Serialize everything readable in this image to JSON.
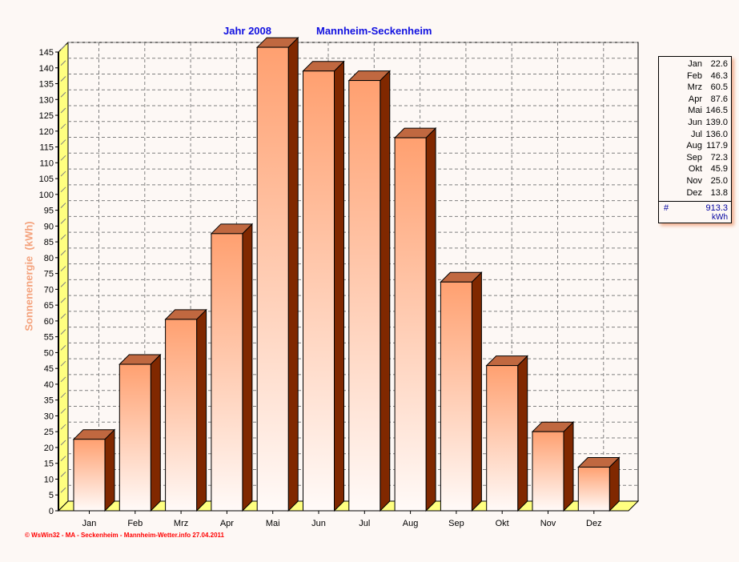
{
  "chart_data": {
    "type": "bar",
    "title_year": "Jahr  2008",
    "title_location": "Mannheim-Seckenheim",
    "ylabel": "Sonnenenergie  (kWh)",
    "xlabel": "",
    "categories": [
      "Jan",
      "Feb",
      "Mrz",
      "Apr",
      "Mai",
      "Jun",
      "Jul",
      "Aug",
      "Sep",
      "Okt",
      "Nov",
      "Dez"
    ],
    "values": [
      22.6,
      46.3,
      60.5,
      87.6,
      146.5,
      139.0,
      136.0,
      117.9,
      72.3,
      45.9,
      25.0,
      13.8
    ],
    "value_labels": [
      "22.6",
      "46.3",
      "60.5",
      "87.6",
      "146.5",
      "139.0",
      "136.0",
      "117.9",
      "72.3",
      "45.9",
      "25.0",
      "13.8"
    ],
    "ylim": [
      0,
      145
    ],
    "ytick_step": 5,
    "grid": true,
    "legend_placement": "right",
    "total_symbol": "#",
    "total": "913.3",
    "unit": "kWh",
    "colors": {
      "bar_top": "#ffa070",
      "bar_bottom": "#fffaf8",
      "bar_side": "#802800",
      "bar_cap": "#c06840",
      "wall": "#ffff80",
      "title": "#1010e0",
      "ylabel": "#f4a27c"
    }
  },
  "footer": "© WsWin32  -  MA - Seckenheim  -  Mannheim-Wetter.info  27.04.2011"
}
